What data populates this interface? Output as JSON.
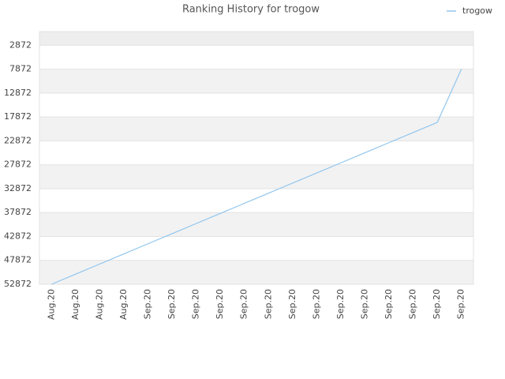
{
  "chart_data": {
    "type": "line",
    "title": "Ranking History for trogow",
    "categories": [
      "Aug.20",
      "Aug.20",
      "Aug.20",
      "Aug.20",
      "Sep.20",
      "Sep.20",
      "Sep.20",
      "Sep.20",
      "Sep.20",
      "Sep.20",
      "Sep.20",
      "Sep.20",
      "Sep.20",
      "Sep.20",
      "Sep.20",
      "Sep.20",
      "Sep.20",
      "Sep.20"
    ],
    "series": [
      {
        "name": "trogow",
        "color": "#90c6ee",
        "values": [
          52872,
          50755,
          48638,
          46521,
          44404,
          42287,
          40170,
          38053,
          35936,
          33819,
          31702,
          29585,
          27468,
          25351,
          23234,
          21117,
          19000,
          7872
        ]
      }
    ],
    "ylim": [
      52872,
      0
    ],
    "yticks": [
      2872,
      7872,
      12872,
      17872,
      22872,
      27872,
      32872,
      37872,
      42872,
      47872,
      52872
    ],
    "grid": true,
    "legend": "top-right"
  }
}
